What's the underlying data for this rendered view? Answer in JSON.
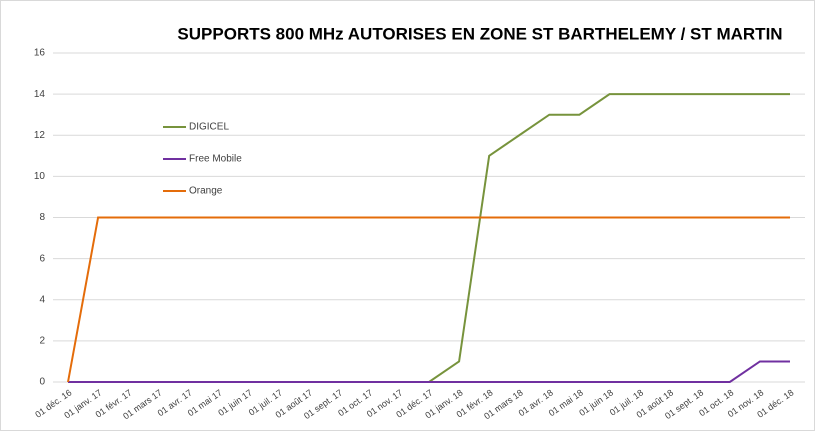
{
  "chart_data": {
    "type": "line",
    "title": "SUPPORTS 800 MHz AUTORISES EN ZONE ST BARTHELEMY / ST MARTIN",
    "categories": [
      "01 déc. 16",
      "01 janv. 17",
      "01 févr. 17",
      "01 mars 17",
      "01 avr. 17",
      "01 mai 17",
      "01 juin 17",
      "01 juil. 17",
      "01 août 17",
      "01 sept. 17",
      "01 oct. 17",
      "01 nov. 17",
      "01 déc. 17",
      "01 janv. 18",
      "01 févr. 18",
      "01 mars 18",
      "01 avr. 18",
      "01 mai 18",
      "01 juin 18",
      "01 juil. 18",
      "01 août 18",
      "01 sept. 18",
      "01 oct. 18",
      "01 nov. 18",
      "01 déc. 18"
    ],
    "series": [
      {
        "name": "DIGICEL",
        "color": "#77933c",
        "values": [
          0,
          0,
          0,
          0,
          0,
          0,
          0,
          0,
          0,
          0,
          0,
          0,
          0,
          1,
          11,
          12,
          13,
          13,
          14,
          14,
          14,
          14,
          14,
          14,
          14
        ]
      },
      {
        "name": "Free Mobile",
        "color": "#7030a0",
        "values": [
          0,
          0,
          0,
          0,
          0,
          0,
          0,
          0,
          0,
          0,
          0,
          0,
          0,
          0,
          0,
          0,
          0,
          0,
          0,
          0,
          0,
          0,
          0,
          1,
          1
        ]
      },
      {
        "name": "Orange",
        "color": "#e46c0a",
        "values": [
          0,
          8,
          8,
          8,
          8,
          8,
          8,
          8,
          8,
          8,
          8,
          8,
          8,
          8,
          8,
          8,
          8,
          8,
          8,
          8,
          8,
          8,
          8,
          8,
          8
        ]
      }
    ],
    "ylim": [
      0,
      16
    ],
    "yticks": [
      0,
      2,
      4,
      6,
      8,
      10,
      12,
      14,
      16
    ],
    "grid": true,
    "legend": "left"
  }
}
